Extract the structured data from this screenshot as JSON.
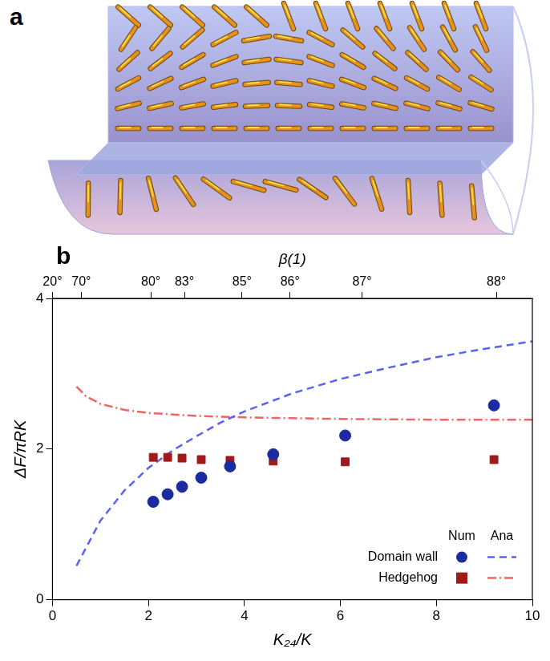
{
  "panel_labels": [
    "a",
    "b"
  ],
  "chart_data": {
    "type": "scatter",
    "x_label": "K₂₄/K",
    "y_label": "ΔF/πRK",
    "x2_label": "β(1)",
    "xlim": [
      0,
      10
    ],
    "xticks": [
      0,
      2,
      4,
      6,
      8,
      10
    ],
    "ylim": [
      0,
      4
    ],
    "yticks": [
      0,
      2,
      4
    ],
    "x2lim": [
      0,
      10
    ],
    "x2ticks": [
      {
        "value": 0,
        "label": "20°"
      },
      {
        "value": 0.6,
        "label": "70°"
      },
      {
        "value": 2.05,
        "label": "80°"
      },
      {
        "value": 2.75,
        "label": "83°"
      },
      {
        "value": 3.95,
        "label": "85°"
      },
      {
        "value": 4.95,
        "label": "86°"
      },
      {
        "value": 6.45,
        "label": "87°"
      },
      {
        "value": 9.25,
        "label": "88°"
      }
    ],
    "grid": false,
    "legend": "lower right",
    "legend_columns": [
      "Num",
      "Ana"
    ],
    "series": [
      {
        "name": "Domain wall",
        "legend_column": "Num",
        "type": "scatter",
        "marker": "circle",
        "color": "#1c2ba0",
        "x": [
          2.1,
          2.4,
          2.7,
          3.1,
          3.7,
          4.6,
          6.1,
          9.2
        ],
        "values": [
          1.3,
          1.4,
          1.5,
          1.62,
          1.77,
          1.93,
          2.18,
          2.58
        ]
      },
      {
        "name": "Hedgehog",
        "legend_column": "Num",
        "type": "scatter",
        "marker": "square",
        "color": "#a01a1a",
        "x": [
          2.1,
          2.4,
          2.7,
          3.1,
          3.7,
          4.6,
          6.1,
          9.2
        ],
        "values": [
          1.89,
          1.89,
          1.88,
          1.86,
          1.85,
          1.84,
          1.83,
          1.86
        ]
      },
      {
        "name": "Domain wall",
        "legend_column": "Ana",
        "type": "line",
        "line_style": "dashed",
        "color": "#5a62f0",
        "x": [
          0.5,
          1,
          1.5,
          2,
          2.5,
          3,
          3.5,
          4,
          5,
          6,
          7,
          8,
          9,
          10
        ],
        "values": [
          0.45,
          1.05,
          1.45,
          1.75,
          1.98,
          2.17,
          2.35,
          2.5,
          2.74,
          2.93,
          3.08,
          3.22,
          3.33,
          3.43
        ]
      },
      {
        "name": "Hedgehog",
        "legend_column": "Ana",
        "type": "line",
        "line_style": "dashdot",
        "color": "#f06464",
        "x": [
          0.5,
          0.7,
          1,
          1.5,
          2,
          3,
          4,
          5,
          6,
          8,
          10
        ],
        "values": [
          2.83,
          2.7,
          2.6,
          2.52,
          2.48,
          2.44,
          2.42,
          2.41,
          2.4,
          2.39,
          2.39
        ]
      }
    ]
  }
}
